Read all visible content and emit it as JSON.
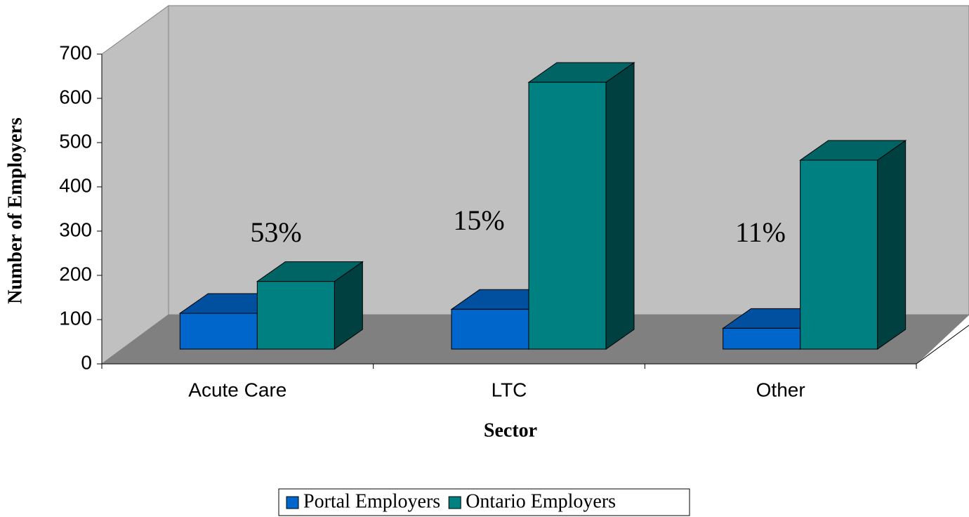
{
  "chart_data": {
    "type": "bar3d",
    "categories": [
      "Acute Care",
      "LTC",
      "Other"
    ],
    "series": [
      {
        "name": "Portal Employers",
        "color": "#0066cc",
        "values": [
          81,
          90,
          47
        ]
      },
      {
        "name": "Ontario Employers",
        "color": "#008080",
        "values": [
          153,
          603,
          427
        ]
      }
    ],
    "annotations": [
      "53%",
      "15%",
      "11%"
    ],
    "x_label": "Sector",
    "y_label": "Number of Employers",
    "ylim": [
      0,
      700
    ],
    "yticks": [
      0,
      100,
      200,
      300,
      400,
      500,
      600,
      700
    ],
    "legend": "bottom"
  }
}
